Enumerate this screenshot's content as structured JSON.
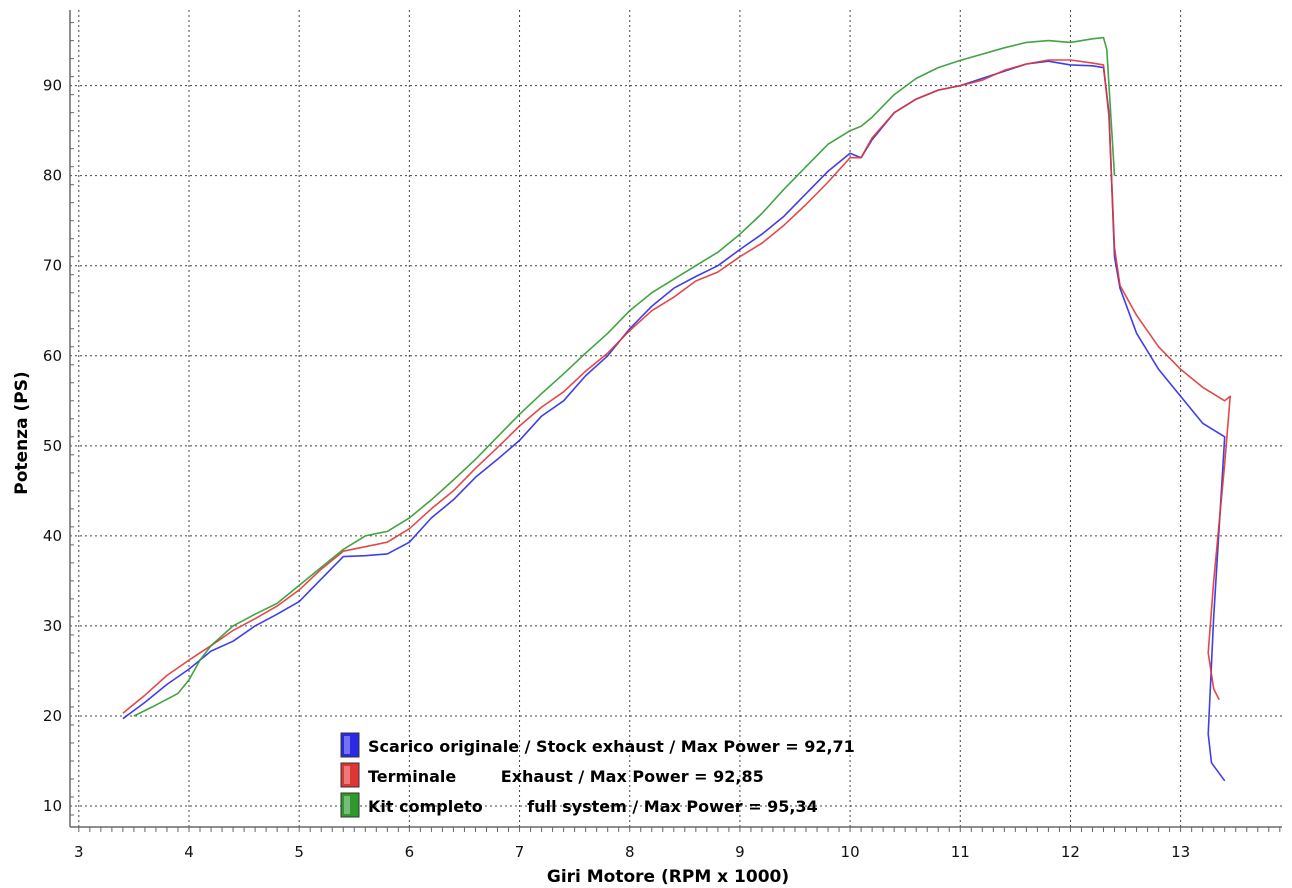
{
  "chart_data": {
    "type": "line",
    "xlabel": "Giri Motore (RPM x 1000)",
    "ylabel": "Potenza (PS)",
    "xlim": [
      2.92,
      13.92
    ],
    "ylim": [
      9,
      98.4
    ],
    "x_ticks": [
      3,
      4,
      5,
      6,
      7,
      8,
      9,
      10,
      11,
      12,
      13
    ],
    "y_ticks": [
      10,
      20,
      30,
      40,
      50,
      60,
      70,
      80,
      90
    ],
    "grid": true,
    "legend_position": "bottom-center",
    "series": [
      {
        "name": "Scarico originale / Stock exhaust / Max Power = 92,71",
        "color": "#2a2ae6",
        "x": [
          3.4,
          3.6,
          3.8,
          4.0,
          4.2,
          4.4,
          4.6,
          4.8,
          5.0,
          5.2,
          5.4,
          5.6,
          5.8,
          6.0,
          6.2,
          6.4,
          6.6,
          6.8,
          7.0,
          7.2,
          7.4,
          7.6,
          7.8,
          8.0,
          8.2,
          8.4,
          8.6,
          8.8,
          9.0,
          9.2,
          9.4,
          9.6,
          9.8,
          10.0,
          10.1,
          10.2,
          10.4,
          10.6,
          10.8,
          11.0,
          11.2,
          11.4,
          11.6,
          11.8,
          12.0,
          12.2,
          12.3,
          12.35,
          12.4,
          12.45,
          12.6,
          12.8,
          13.0,
          13.2,
          13.4,
          13.3,
          13.25,
          13.28,
          13.4
        ],
        "y": [
          19.7,
          21.5,
          23.5,
          25.2,
          27.2,
          28.3,
          30.0,
          31.3,
          32.7,
          35.2,
          37.7,
          37.8,
          38.0,
          39.3,
          42.0,
          44.0,
          46.5,
          48.5,
          50.6,
          53.3,
          55.0,
          57.8,
          60.0,
          63.0,
          65.5,
          67.5,
          68.8,
          70.0,
          71.8,
          73.5,
          75.5,
          78.0,
          80.5,
          82.5,
          82.0,
          84.0,
          87.0,
          88.5,
          89.5,
          90.0,
          90.8,
          91.6,
          92.4,
          92.71,
          92.3,
          92.2,
          92.0,
          87.0,
          71.0,
          67.5,
          62.5,
          58.5,
          55.5,
          52.5,
          51.0,
          31.0,
          18.0,
          14.8,
          12.8
        ]
      },
      {
        "name": "Terminale Exhaust / Max Power = 92,85",
        "color": "#e03535",
        "x": [
          3.4,
          3.6,
          3.8,
          4.0,
          4.2,
          4.4,
          4.6,
          4.8,
          5.0,
          5.2,
          5.4,
          5.6,
          5.8,
          6.0,
          6.2,
          6.4,
          6.6,
          6.8,
          7.0,
          7.2,
          7.4,
          7.6,
          7.8,
          8.0,
          8.2,
          8.4,
          8.6,
          8.8,
          9.0,
          9.2,
          9.4,
          9.6,
          9.8,
          10.0,
          10.1,
          10.2,
          10.4,
          10.6,
          10.8,
          11.0,
          11.2,
          11.4,
          11.6,
          11.8,
          12.0,
          12.2,
          12.3,
          12.35,
          12.4,
          12.45,
          12.6,
          12.8,
          13.0,
          13.2,
          13.4,
          13.45,
          13.4,
          13.3,
          13.25,
          13.3,
          13.35
        ],
        "y": [
          20.3,
          22.3,
          24.5,
          26.2,
          27.8,
          29.5,
          30.8,
          32.2,
          34.0,
          36.3,
          38.3,
          38.8,
          39.3,
          40.8,
          43.0,
          45.0,
          47.5,
          49.8,
          52.2,
          54.3,
          56.0,
          58.3,
          60.3,
          62.8,
          65.0,
          66.5,
          68.3,
          69.3,
          71.0,
          72.5,
          74.5,
          76.8,
          79.3,
          82.0,
          82.0,
          84.2,
          87.0,
          88.5,
          89.5,
          90.0,
          90.6,
          91.7,
          92.4,
          92.85,
          92.85,
          92.5,
          92.3,
          86.5,
          72.0,
          67.8,
          64.5,
          61.0,
          58.5,
          56.5,
          55.0,
          55.5,
          48.0,
          35.0,
          27.0,
          23.0,
          21.8
        ]
      },
      {
        "name": "Kit completo full system / Max Power = 95,34",
        "color": "#2e9a2e",
        "x": [
          3.5,
          3.7,
          3.9,
          4.0,
          4.1,
          4.2,
          4.4,
          4.6,
          4.8,
          5.0,
          5.2,
          5.4,
          5.6,
          5.8,
          6.0,
          6.2,
          6.4,
          6.6,
          6.8,
          7.0,
          7.2,
          7.4,
          7.6,
          7.8,
          8.0,
          8.2,
          8.4,
          8.6,
          8.8,
          9.0,
          9.2,
          9.4,
          9.6,
          9.8,
          10.0,
          10.1,
          10.2,
          10.4,
          10.6,
          10.8,
          11.0,
          11.2,
          11.4,
          11.6,
          11.8,
          12.0,
          12.2,
          12.3,
          12.33,
          12.36,
          12.4
        ],
        "y": [
          20.0,
          21.2,
          22.5,
          24.0,
          26.2,
          27.8,
          30.0,
          31.3,
          32.5,
          34.5,
          36.5,
          38.5,
          40.0,
          40.5,
          42.0,
          44.0,
          46.2,
          48.5,
          51.0,
          53.5,
          55.8,
          58.0,
          60.3,
          62.5,
          65.0,
          67.0,
          68.5,
          70.0,
          71.5,
          73.5,
          75.8,
          78.5,
          81.0,
          83.5,
          85.0,
          85.5,
          86.5,
          89.0,
          90.8,
          92.0,
          92.8,
          93.5,
          94.2,
          94.8,
          95.0,
          94.8,
          95.2,
          95.34,
          94.0,
          88.0,
          80.0
        ]
      }
    ],
    "legend": [
      {
        "label": "Scarico originale / Stock exhaust / Max Power = 92,71",
        "color": "#2a2ae6"
      },
      {
        "label": "Terminale        Exhaust / Max Power = 92,85",
        "color": "#e03535"
      },
      {
        "label": "Kit completo        full system / Max Power = 95,34",
        "color": "#2e9a2e"
      }
    ]
  }
}
